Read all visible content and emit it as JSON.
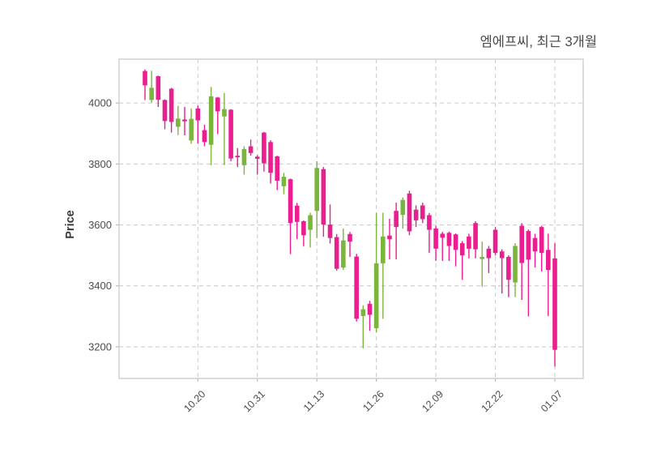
{
  "title": "엠에프씨, 최근 3개월",
  "y_axis": {
    "label": "Price",
    "ticks": [
      3200,
      3400,
      3600,
      3800,
      4000
    ]
  },
  "x_axis": {
    "ticks": [
      {
        "label": "10.20",
        "index": 8
      },
      {
        "label": "10.31",
        "index": 17
      },
      {
        "label": "11.13",
        "index": 26
      },
      {
        "label": "11.26",
        "index": 35
      },
      {
        "label": "12.09",
        "index": 44
      },
      {
        "label": "12.22",
        "index": 53
      },
      {
        "label": "01.07",
        "index": 62
      }
    ]
  },
  "colors": {
    "up": "#7cb53e",
    "down": "#ea1e8e",
    "grid": "#cdcdcd",
    "spine": "#d4d4d4",
    "tick_text": "#4d4d4d",
    "title_text": "#4a4a4a",
    "axis_label_text": "#3a3a3a",
    "background": "#ffffff"
  },
  "chart_data": {
    "type": "candlestick",
    "title": "엠에프씨, 최근 3개월",
    "xlabel": "",
    "ylabel": "Price",
    "ylim": [
      3096,
      4144
    ],
    "y_tick_labels": [
      3200,
      3400,
      3600,
      3800,
      4000
    ],
    "x_tick_labels": [
      "10.20",
      "10.31",
      "11.13",
      "11.26",
      "12.09",
      "12.22",
      "01.07"
    ],
    "x_tick_indices": [
      8,
      17,
      26,
      35,
      44,
      53,
      62
    ],
    "grid": "dashed, both axes",
    "legend": "none",
    "candle_count": 63,
    "ohlc": [
      [
        4105,
        4110,
        4010,
        4058
      ],
      [
        4010,
        4106,
        4002,
        4050
      ],
      [
        4088,
        4090,
        3987,
        4011
      ],
      [
        4010,
        4012,
        3914,
        3941
      ],
      [
        4047,
        4050,
        3903,
        3938
      ],
      [
        3922,
        3991,
        3895,
        3949
      ],
      [
        3946,
        3987,
        3894,
        3940
      ],
      [
        3877,
        3982,
        3866,
        3948
      ],
      [
        3982,
        3991,
        3867,
        3943
      ],
      [
        3911,
        3929,
        3858,
        3872
      ],
      [
        3863,
        4053,
        3796,
        4022
      ],
      [
        4018,
        4020,
        3898,
        3973
      ],
      [
        3956,
        4033,
        3796,
        3980
      ],
      [
        3978,
        3980,
        3809,
        3818
      ],
      [
        3827,
        3852,
        3790,
        3822
      ],
      [
        3796,
        3858,
        3765,
        3849
      ],
      [
        3858,
        3880,
        3827,
        3836
      ],
      [
        3824,
        3829,
        3765,
        3817
      ],
      [
        3903,
        3905,
        3775,
        3802
      ],
      [
        3872,
        3878,
        3736,
        3771
      ],
      [
        3825,
        3827,
        3714,
        3745
      ],
      [
        3727,
        3771,
        3701,
        3758
      ],
      [
        3750,
        3752,
        3504,
        3606
      ],
      [
        3663,
        3672,
        3553,
        3610
      ],
      [
        3612,
        3615,
        3530,
        3566
      ],
      [
        3584,
        3640,
        3526,
        3632
      ],
      [
        3646,
        3809,
        3557,
        3787
      ],
      [
        3783,
        3790,
        3561,
        3601
      ],
      [
        3601,
        3667,
        3539,
        3557
      ],
      [
        3560,
        3570,
        3450,
        3456
      ],
      [
        3460,
        3588,
        3452,
        3549
      ],
      [
        3570,
        3577,
        3495,
        3545
      ],
      [
        3496,
        3505,
        3283,
        3292
      ],
      [
        3301,
        3336,
        3195,
        3323
      ],
      [
        3341,
        3351,
        3252,
        3305
      ],
      [
        3261,
        3640,
        3248,
        3474
      ],
      [
        3474,
        3640,
        3292,
        3562
      ],
      [
        3565,
        3620,
        3487,
        3553
      ],
      [
        3646,
        3673,
        3487,
        3593
      ],
      [
        3633,
        3690,
        3588,
        3682
      ],
      [
        3703,
        3712,
        3566,
        3579
      ],
      [
        3650,
        3664,
        3593,
        3615
      ],
      [
        3664,
        3673,
        3606,
        3619
      ],
      [
        3632,
        3639,
        3508,
        3584
      ],
      [
        3588,
        3597,
        3482,
        3522
      ],
      [
        3571,
        3577,
        3482,
        3558
      ],
      [
        3574,
        3578,
        3482,
        3531
      ],
      [
        3569,
        3572,
        3464,
        3518
      ],
      [
        3540,
        3547,
        3420,
        3500
      ],
      [
        3562,
        3571,
        3490,
        3522
      ],
      [
        3606,
        3612,
        3490,
        3520
      ],
      [
        3488,
        3545,
        3397,
        3495
      ],
      [
        3522,
        3531,
        3442,
        3491
      ],
      [
        3584,
        3593,
        3500,
        3508
      ],
      [
        3513,
        3520,
        3375,
        3491
      ],
      [
        3495,
        3500,
        3363,
        3420
      ],
      [
        3411,
        3540,
        3363,
        3531
      ],
      [
        3597,
        3606,
        3354,
        3475
      ],
      [
        3580,
        3585,
        3300,
        3486
      ],
      [
        3557,
        3571,
        3460,
        3513
      ],
      [
        3593,
        3597,
        3447,
        3508
      ],
      [
        3518,
        3571,
        3301,
        3452
      ],
      [
        3490,
        3540,
        3135,
        3190
      ]
    ]
  }
}
